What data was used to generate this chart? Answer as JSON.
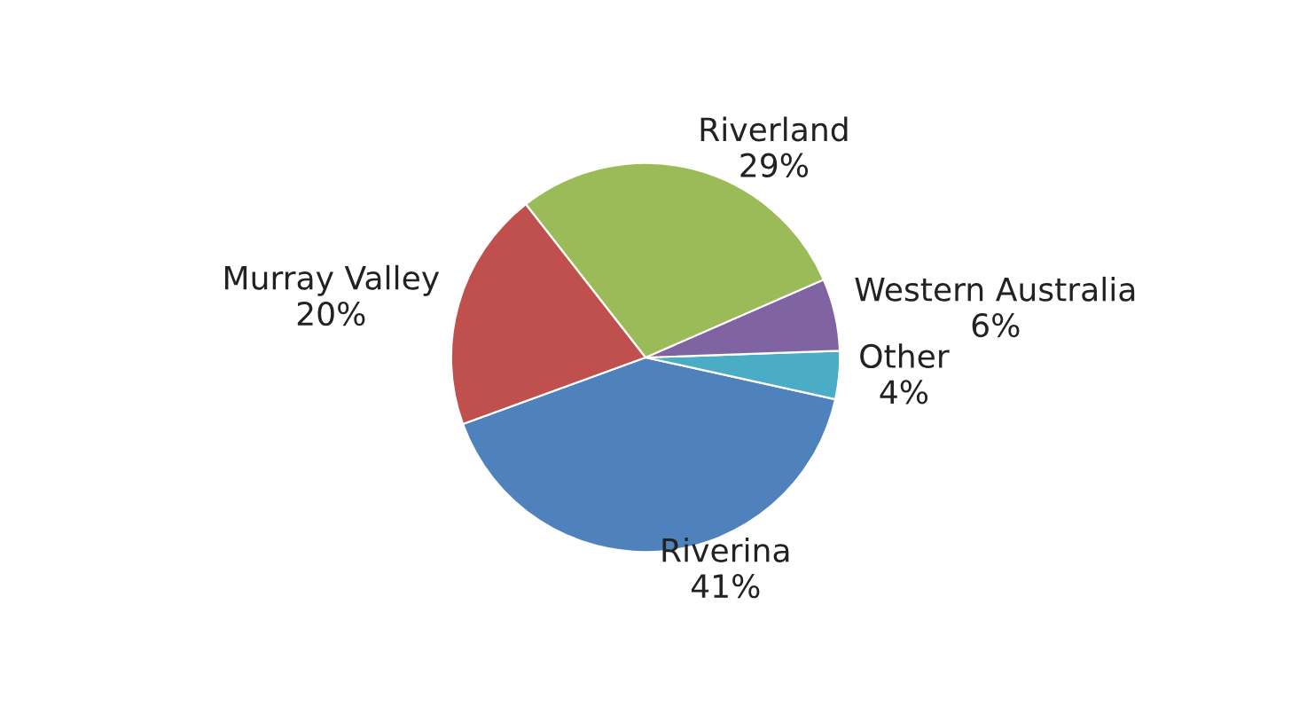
{
  "chart_data": {
    "type": "pie",
    "categories": [
      "Riverina",
      "Other",
      "Western Australia",
      "Riverland",
      "Murray Valley"
    ],
    "values": [
      41,
      4,
      6,
      29,
      20
    ],
    "value_labels": [
      "41%",
      "4%",
      "6%",
      "29%",
      "20%"
    ],
    "colors": [
      "#4f81bd",
      "#4bacc6",
      "#8064a2",
      "#9bbb59",
      "#c0504d"
    ],
    "legend": false
  }
}
